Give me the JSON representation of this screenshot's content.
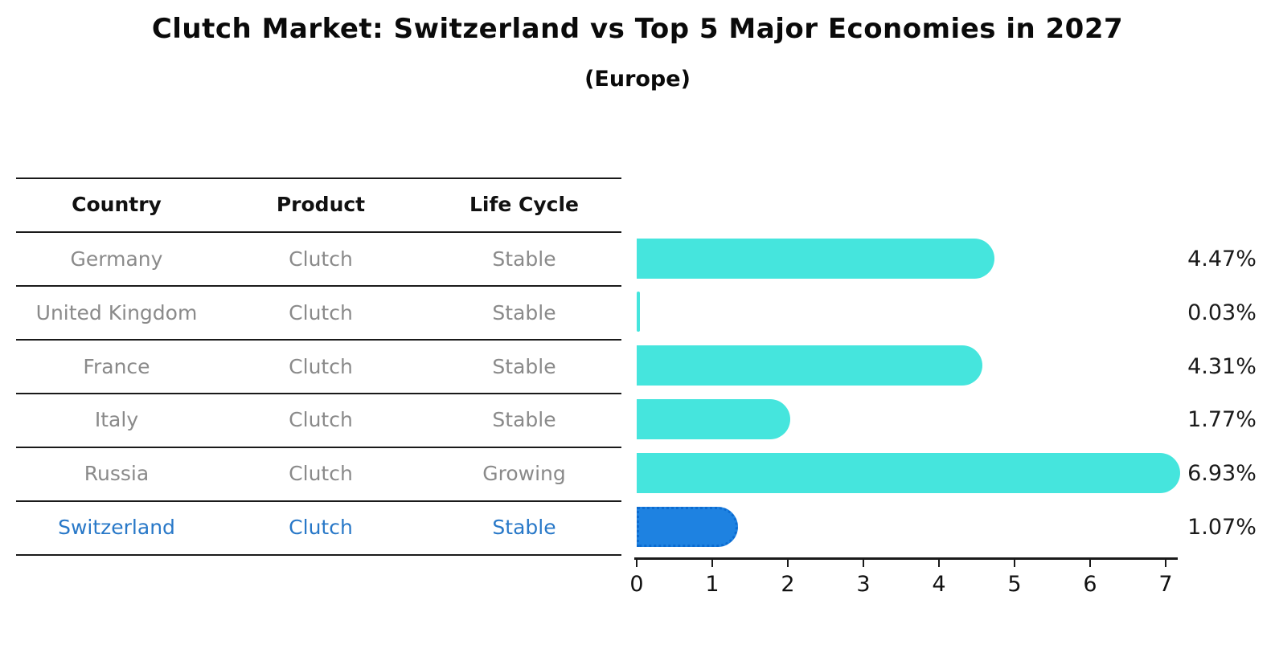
{
  "page": {
    "title": "Clutch Market: Switzerland vs Top 5 Major Economies in 2027",
    "subtitle": "(Europe)"
  },
  "table": {
    "columns": [
      "Country",
      "Product",
      "Life Cycle"
    ],
    "rows": [
      {
        "country": "Germany",
        "product": "Clutch",
        "life_cycle": "Stable"
      },
      {
        "country": "United Kingdom",
        "product": "Clutch",
        "life_cycle": "Stable"
      },
      {
        "country": "France",
        "product": "Clutch",
        "life_cycle": "Stable"
      },
      {
        "country": "Italy",
        "product": "Clutch",
        "life_cycle": "Stable"
      },
      {
        "country": "Russia",
        "product": "Clutch",
        "life_cycle": "Growing"
      },
      {
        "country": "Switzerland",
        "product": "Clutch",
        "life_cycle": "Stable"
      }
    ],
    "highlighted_row": "Switzerland"
  },
  "chart_data": {
    "type": "bar",
    "orientation": "horizontal",
    "title": "Clutch Market: Switzerland vs Top 5 Major Economies in 2027",
    "subtitle": "(Europe)",
    "categories": [
      "Germany",
      "United Kingdom",
      "France",
      "Italy",
      "Russia",
      "Switzerland"
    ],
    "values": [
      4.47,
      0.03,
      4.31,
      1.77,
      6.93,
      1.07
    ],
    "value_labels": [
      "4.47%",
      "0.03%",
      "4.31%",
      "1.77%",
      "6.93%",
      "1.07%"
    ],
    "unit": "%",
    "xlim": [
      0,
      7.1
    ],
    "x_ticks": [
      0,
      1,
      2,
      3,
      4,
      5,
      6,
      7
    ],
    "x_tick_labels": [
      "0",
      "1",
      "2",
      "3",
      "4",
      "5",
      "6",
      "7"
    ],
    "grid": false,
    "legend": false,
    "bar_color": "#45e5dd",
    "highlight_color": "#1e82e1",
    "highlight_border_color": "#0c6bd0",
    "highlight_index": 5
  },
  "colors": {
    "background": "#ffffff",
    "table_line": "#1a1a1a",
    "muted_text": "#8a8a8a",
    "header_text": "#111111",
    "highlight_text": "#2878c8",
    "bar_cyan": "#45e5dd",
    "bar_blue": "#1e82e1"
  }
}
